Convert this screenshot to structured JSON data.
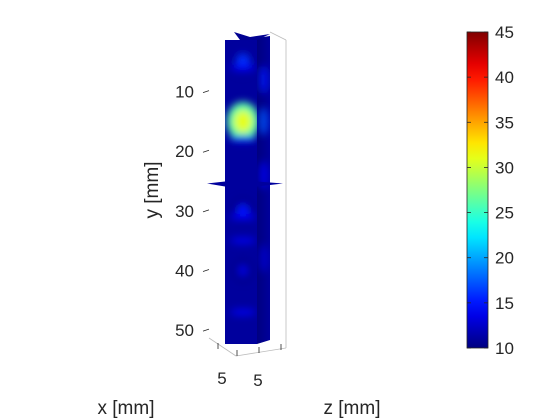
{
  "chart_data": {
    "type": "heatmap",
    "title": "",
    "xlabel": "x [mm]",
    "ylabel": "y [mm]",
    "zlabel": "z [mm]",
    "y_ticks": [
      10,
      20,
      30,
      40,
      50
    ],
    "y_tick_labels": [
      "10",
      "20",
      "30",
      "40",
      "50"
    ],
    "x_tick_labels": [
      "5"
    ],
    "z_tick_labels": [
      "5"
    ],
    "ylim": [
      0,
      52
    ],
    "y_direction": "reverse",
    "colormap": "jet",
    "color_limits": [
      10,
      45
    ],
    "colorbar_ticks": [
      10,
      15,
      20,
      25,
      30,
      35,
      40,
      45
    ],
    "colorbar_tick_labels": [
      "10",
      "15",
      "20",
      "25",
      "30",
      "35",
      "40",
      "45"
    ],
    "colorbar_position": "right",
    "grid": false,
    "view": "3d slice planes (x-slice, z-slice, y-slice)",
    "hotspots": [
      {
        "y": 15,
        "value": 31
      },
      {
        "y": 5,
        "value": 16
      },
      {
        "y": 30,
        "value": 15
      },
      {
        "y": 40,
        "value": 13
      }
    ],
    "background_value": 11
  }
}
